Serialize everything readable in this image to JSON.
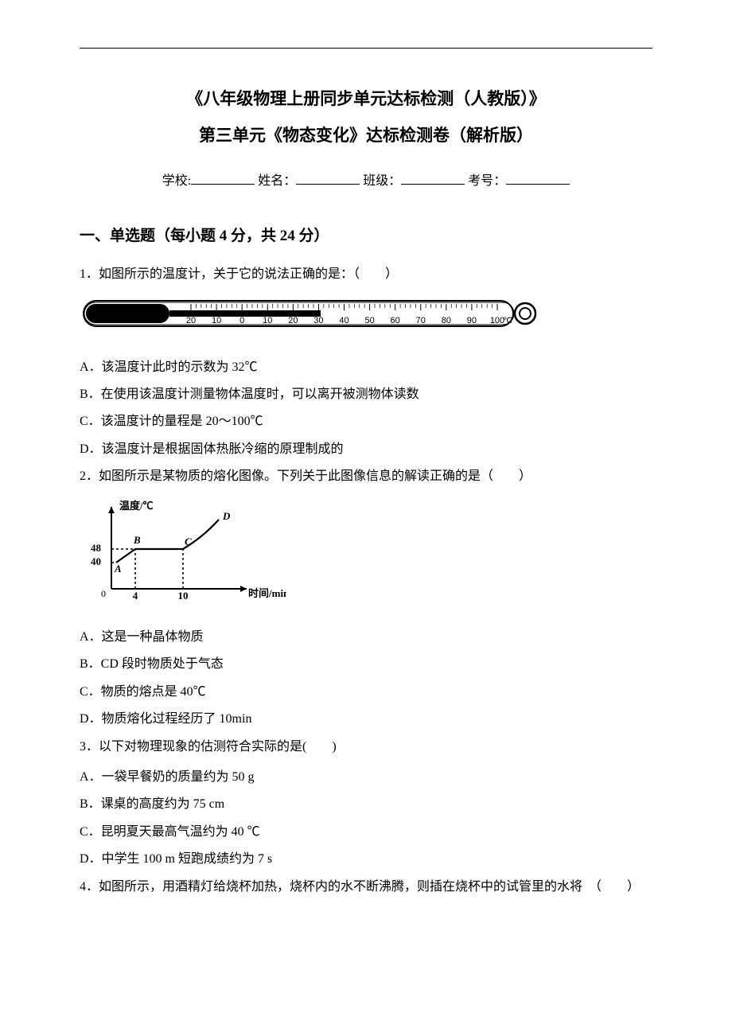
{
  "title1": "《八年级物理上册同步单元达标检测（人教版）》",
  "title2": "第三单元《物态变化》达标检测卷（解析版）",
  "info": {
    "school_label": "学校:",
    "name_label": "姓名：",
    "class_label": "班级：",
    "exam_label": "考号："
  },
  "section1_header": "一、单选题（每小题 4 分，共 24 分）",
  "q1": {
    "stem": "1．如图所示的温度计，关于它的说法正确的是：（　　）",
    "optA": "A．该温度计此时的示数为 32℃",
    "optB": "B．在使用该温度计测量物体温度时，可以离开被测物体读数",
    "optC": "C．该温度计的量程是 20～100℃",
    "optD": "D．该温度计是根据固体热胀冷缩的原理制成的"
  },
  "q2": {
    "stem": "2．如图所示是某物质的熔化图像。下列关于此图像信息的解读正确的是（　　）",
    "optA": "A．这是一种晶体物质",
    "optB": "B．CD 段时物质处于气态",
    "optC": "C．物质的熔点是 40℃",
    "optD": "D．物质熔化过程经历了 10min"
  },
  "q3": {
    "stem": "3．以下对物理现象的估测符合实际的是(　　)",
    "optA": "A．一袋早餐奶的质量约为 50 g",
    "optB": "B．课桌的高度约为 75 cm",
    "optC": "C．昆明夏天最高气温约为 40 ℃",
    "optD": "D．中学生 100 m 短跑成绩约为 7 s"
  },
  "q4": {
    "stem": "4．如图所示，用酒精灯给烧杯加热，烧杯内的水不断沸腾，则插在烧杯中的试管里的水将　（　　）"
  },
  "thermometer": {
    "ticks": [
      "20",
      "10",
      "0",
      "10",
      "20",
      "30",
      "40",
      "50",
      "60",
      "70",
      "80",
      "90",
      "100"
    ],
    "unit": "℃",
    "stroke": "#000000",
    "fill": "#000000",
    "fontsize": 11
  },
  "melting_chart": {
    "y_label": "温度/℃",
    "x_label": "时间/min",
    "y_values": [
      40,
      48
    ],
    "x_values": [
      4,
      10
    ],
    "points": {
      "A": {
        "x": 2,
        "y": 40,
        "label": "A"
      },
      "B": {
        "x": 4,
        "y": 48,
        "label": "B"
      },
      "C": {
        "x": 10,
        "y": 48,
        "label": "C"
      },
      "D": {
        "x": 13,
        "y": 60,
        "label": "D"
      }
    },
    "stroke": "#000000",
    "fontsize": 12
  }
}
